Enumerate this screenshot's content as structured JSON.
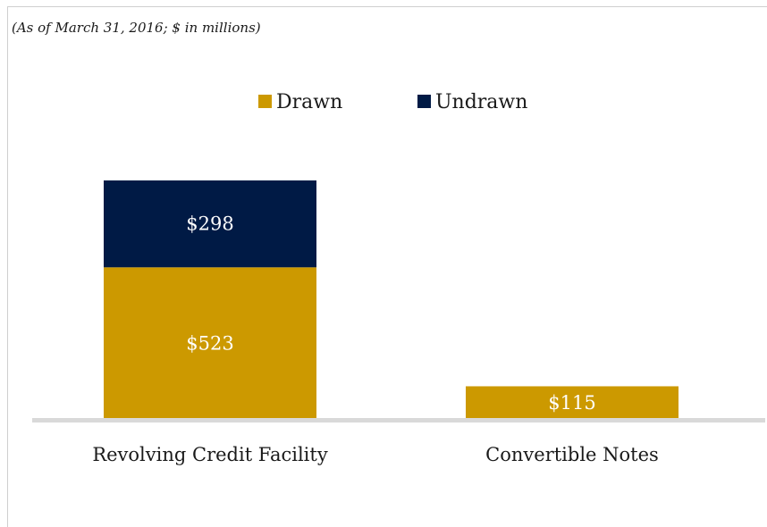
{
  "subtitle": "(As of March 31, 2016; $ in millions)",
  "chart_data": {
    "type": "bar",
    "stacked": true,
    "categories": [
      "Revolving Credit Facility",
      "Convertible Notes"
    ],
    "series": [
      {
        "name": "Drawn",
        "color": "#CC9900",
        "values": [
          523,
          115
        ],
        "labels": [
          "$523",
          "$115"
        ]
      },
      {
        "name": "Undrawn",
        "color": "#001A45",
        "values": [
          298,
          null
        ],
        "labels": [
          "$298",
          ""
        ]
      }
    ],
    "legend_position": "top-center",
    "ylim": [
      0,
      850
    ],
    "grid": false
  }
}
